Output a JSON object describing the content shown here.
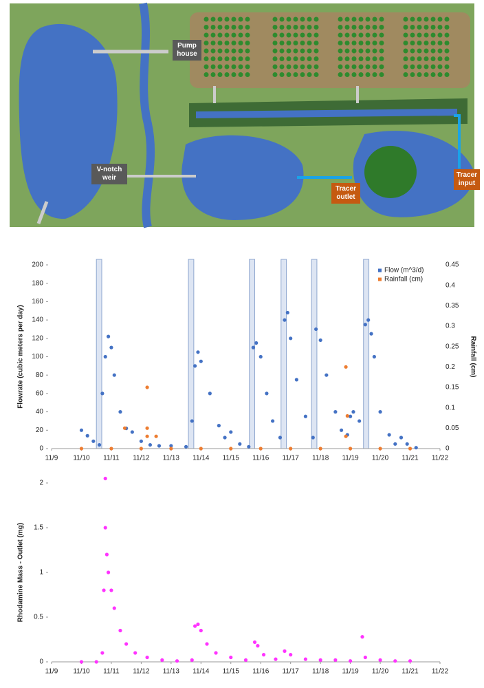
{
  "diagram": {
    "labels": {
      "pump": "Pump house",
      "weir": "V-notch weir",
      "outlet": "Tracer outlet",
      "input": "Tracer input"
    }
  },
  "chart_data": [
    {
      "type": "scatter",
      "y_label": "Flowrate (cubic meters per day)",
      "y2_label": "Rainfall (cm)",
      "xlim": [
        9,
        22
      ],
      "xticks": [
        {
          "value": 9,
          "label": "11/9"
        },
        {
          "value": 10,
          "label": "11/10"
        },
        {
          "value": 11,
          "label": "11/11"
        },
        {
          "value": 12,
          "label": "11/12"
        },
        {
          "value": 13,
          "label": "11/13"
        },
        {
          "value": 14,
          "label": "11/14"
        },
        {
          "value": 15,
          "label": "11/15"
        },
        {
          "value": 16,
          "label": "11/16"
        },
        {
          "value": 17,
          "label": "11/17"
        },
        {
          "value": 18,
          "label": "11/18"
        },
        {
          "value": 19,
          "label": "11/19"
        },
        {
          "value": 20,
          "label": "11/20"
        },
        {
          "value": 21,
          "label": "11/21"
        },
        {
          "value": 22,
          "label": "11/22"
        }
      ],
      "ylim": [
        0,
        200
      ],
      "yticks": [
        0,
        20,
        40,
        60,
        80,
        100,
        120,
        140,
        160,
        180,
        200
      ],
      "y2lim": [
        0,
        0.45
      ],
      "y2ticks": [
        0,
        0.05,
        0.1,
        0.15,
        0.2,
        0.25,
        0.3,
        0.35,
        0.4,
        0.45
      ],
      "legend": "top-right",
      "highlight_x": [
        [
          10.5,
          10.68
        ],
        [
          13.58,
          13.76
        ],
        [
          15.62,
          15.8
        ],
        [
          16.68,
          16.86
        ],
        [
          17.7,
          17.88
        ],
        [
          19.44,
          19.62
        ]
      ],
      "series": [
        {
          "name": "Flow (m^3/d)",
          "color": "#4472c4",
          "x": [
            10.0,
            10.2,
            10.4,
            10.6,
            10.7,
            10.8,
            10.9,
            11.0,
            11.1,
            11.3,
            11.5,
            11.7,
            12.0,
            12.3,
            12.6,
            13.0,
            13.5,
            13.7,
            13.8,
            13.9,
            14.0,
            14.3,
            14.6,
            14.8,
            15.0,
            15.3,
            15.6,
            15.75,
            15.85,
            16.0,
            16.2,
            16.4,
            16.65,
            16.8,
            16.9,
            17.0,
            17.2,
            17.5,
            17.75,
            17.85,
            18.0,
            18.2,
            18.5,
            18.7,
            18.9,
            19.0,
            19.1,
            19.3,
            19.5,
            19.6,
            19.7,
            19.8,
            20.0,
            20.3,
            20.5,
            20.7,
            20.9,
            21.2
          ],
          "values": [
            20,
            14,
            8,
            4,
            60,
            100,
            122,
            110,
            80,
            40,
            22,
            18,
            8,
            4,
            3,
            3,
            2,
            30,
            90,
            105,
            95,
            60,
            25,
            12,
            18,
            5,
            2,
            110,
            115,
            100,
            60,
            30,
            12,
            140,
            148,
            120,
            75,
            35,
            12,
            130,
            118,
            80,
            40,
            20,
            15,
            35,
            40,
            30,
            135,
            140,
            125,
            100,
            40,
            15,
            5,
            12,
            5,
            1
          ]
        },
        {
          "name": "Rainfall (cm)",
          "color": "#ed7d31",
          "axis": "y2",
          "x": [
            10,
            11,
            11.45,
            12,
            12.2,
            12.2,
            12.2,
            12.5,
            13,
            14,
            15,
            16,
            17,
            18,
            18.85,
            18.9,
            18.85,
            19,
            20,
            21
          ],
          "values": [
            0,
            0,
            0.05,
            0,
            0.05,
            0.15,
            0.03,
            0.03,
            0,
            0,
            0,
            0,
            0,
            0,
            0.2,
            0.08,
            0.03,
            0,
            0,
            0
          ]
        }
      ]
    },
    {
      "type": "scatter",
      "y_label": "Rhodamine Mass - Outlet (mg)",
      "xlim": [
        9,
        22
      ],
      "xticks": [
        {
          "value": 9,
          "label": "11/9"
        },
        {
          "value": 10,
          "label": "11/10"
        },
        {
          "value": 11,
          "label": "11/11"
        },
        {
          "value": 12,
          "label": "11/12"
        },
        {
          "value": 13,
          "label": "11/13"
        },
        {
          "value": 14,
          "label": "11/14"
        },
        {
          "value": 15,
          "label": "11/15"
        },
        {
          "value": 16,
          "label": "11/16"
        },
        {
          "value": 17,
          "label": "11/17"
        },
        {
          "value": 18,
          "label": "11/18"
        },
        {
          "value": 19,
          "label": "11/19"
        },
        {
          "value": 20,
          "label": "11/20"
        },
        {
          "value": 21,
          "label": "11/21"
        },
        {
          "value": 22,
          "label": "11/22"
        }
      ],
      "ylim": [
        0,
        2
      ],
      "yticks": [
        0,
        0.5,
        1,
        1.5,
        2
      ],
      "series": [
        {
          "color": "#ff33ff",
          "x": [
            10.0,
            10.5,
            10.7,
            10.75,
            10.8,
            10.8,
            10.85,
            10.9,
            11.0,
            11.1,
            11.3,
            11.5,
            11.8,
            12.2,
            12.7,
            13.2,
            13.7,
            13.8,
            13.9,
            14.0,
            14.2,
            14.5,
            15.0,
            15.5,
            15.8,
            15.9,
            16.1,
            16.5,
            16.8,
            17.0,
            17.5,
            18.0,
            18.5,
            19.0,
            19.4,
            19.5,
            20.0,
            20.5,
            21.0
          ],
          "values": [
            0,
            0,
            0.1,
            0.8,
            1.5,
            2.05,
            1.2,
            1.0,
            0.8,
            0.6,
            0.35,
            0.2,
            0.1,
            0.05,
            0.02,
            0.01,
            0.02,
            0.4,
            0.42,
            0.35,
            0.2,
            0.1,
            0.05,
            0.02,
            0.22,
            0.18,
            0.08,
            0.03,
            0.12,
            0.08,
            0.03,
            0.02,
            0.02,
            0.01,
            0.28,
            0.05,
            0.02,
            0.01,
            0.01
          ]
        }
      ]
    }
  ]
}
